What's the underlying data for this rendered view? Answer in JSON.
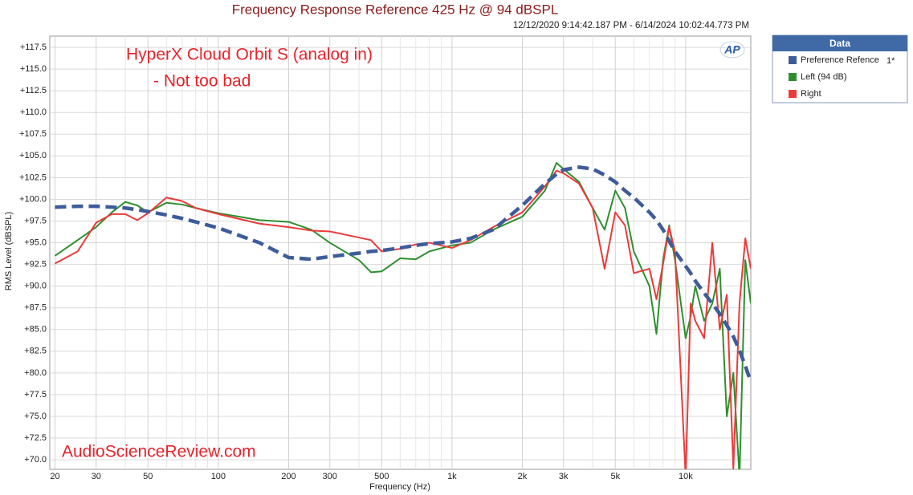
{
  "chart_data": {
    "type": "line",
    "title": "Frequency Response Reference 425 Hz @ 94 dBSPL",
    "subtitle": "12/12/2020 9:14:42.187 PM - 6/14/2024 10:02:44.773 PM",
    "xlabel": "Frequency (Hz)",
    "ylabel": "RMS Level (dBSPL)",
    "annotations": [
      "HyperX Cloud Orbit S (analog in)",
      "- Not too bad",
      "AudioScienceReview.com"
    ],
    "logo": "AP",
    "legend_title": "Data",
    "xscale": "log",
    "grid": true,
    "xlim": [
      19,
      19000
    ],
    "ylim": [
      68.9,
      118.8
    ],
    "xticks": [
      20,
      30,
      50,
      100,
      200,
      300,
      500,
      {
        "value": 1000,
        "label": "1k"
      },
      {
        "value": 2000,
        "label": "2k"
      },
      {
        "value": 3000,
        "label": "3k"
      },
      {
        "value": 5000,
        "label": "5k"
      },
      {
        "value": 10000,
        "label": "10k"
      }
    ],
    "xminorticks": [
      40,
      60,
      70,
      80,
      90,
      400,
      600,
      700,
      800,
      900,
      4000,
      6000,
      7000,
      8000,
      9000
    ],
    "yticks": [
      {
        "value": 70,
        "label": "+70.0"
      },
      {
        "value": 72.5,
        "label": "+72.5"
      },
      {
        "value": 75,
        "label": "+75.0"
      },
      {
        "value": 77.5,
        "label": "+77.5"
      },
      {
        "value": 80,
        "label": "+80.0"
      },
      {
        "value": 82.5,
        "label": "+82.5"
      },
      {
        "value": 85,
        "label": "+85.0"
      },
      {
        "value": 87.5,
        "label": "+87.5"
      },
      {
        "value": 90,
        "label": "+90.0"
      },
      {
        "value": 92.5,
        "label": "+92.5"
      },
      {
        "value": 95,
        "label": "+95.0"
      },
      {
        "value": 97.5,
        "label": "+97.5"
      },
      {
        "value": 100,
        "label": "+100.0"
      },
      {
        "value": 102.5,
        "label": "+102.5"
      },
      {
        "value": 105,
        "label": "+105.0"
      },
      {
        "value": 107.5,
        "label": "+107.5"
      },
      {
        "value": 110,
        "label": "+110.0"
      },
      {
        "value": 112.5,
        "label": "+112.5"
      },
      {
        "value": 115,
        "label": "+115.0"
      },
      {
        "value": 117.5,
        "label": "+117.5"
      }
    ],
    "x": [
      20,
      25,
      30,
      35,
      40,
      45,
      50,
      60,
      70,
      80,
      100,
      150,
      200,
      250,
      300,
      400,
      450,
      500,
      600,
      700,
      800,
      1000,
      1200,
      1500,
      2000,
      2500,
      2800,
      3000,
      3500,
      4000,
      4500,
      5000,
      5500,
      6000,
      7000,
      7500,
      8000,
      8500,
      9000,
      10000,
      10500,
      11000,
      12000,
      13000,
      14000,
      15000,
      16000,
      17000,
      18000,
      19000
    ],
    "series": [
      {
        "name": "Preference Refence",
        "legend_note": "1*",
        "color": "#3e5c9a",
        "dashed": true,
        "values": [
          99.1,
          99.2,
          99.2,
          99.1,
          99,
          98.8,
          98.6,
          98.2,
          97.8,
          97.4,
          96.7,
          95,
          93.3,
          93.1,
          93.4,
          93.8,
          94,
          94.1,
          94.4,
          94.7,
          94.9,
          95.1,
          95.5,
          96.5,
          99.3,
          101.8,
          102.9,
          103.4,
          103.7,
          103.5,
          102.8,
          102,
          101,
          100.2,
          98.5,
          97.6,
          96.5,
          95.2,
          94,
          92.3,
          91.5,
          90.6,
          89.2,
          88,
          86.8,
          85.5,
          84.2,
          82.6,
          80.8,
          79
        ]
      },
      {
        "name": "Left (94 dB)",
        "color": "#2f8f2f",
        "dashed": false,
        "values": [
          93.5,
          95.3,
          96.8,
          98.5,
          99.7,
          99.3,
          98.5,
          99.6,
          99.4,
          99,
          98.4,
          97.6,
          97.4,
          96.5,
          95,
          93,
          91.6,
          91.7,
          93.2,
          93.1,
          94,
          94.7,
          95,
          96.5,
          98,
          101,
          104.2,
          103.5,
          102,
          99,
          96.5,
          101,
          99,
          94,
          90,
          84.5,
          93,
          97,
          93,
          84,
          86.5,
          90,
          86,
          88,
          92,
          75,
          80,
          68,
          93,
          88
        ]
      },
      {
        "name": "Right",
        "color": "#ec3a3a",
        "dashed": false,
        "values": [
          92.6,
          94,
          97.3,
          98.3,
          98.3,
          97.6,
          98.4,
          100.2,
          99.8,
          99,
          98.3,
          97.2,
          96.8,
          96.4,
          96.3,
          95.6,
          95.3,
          94,
          94.3,
          94.8,
          95,
          94.4,
          95.3,
          96.8,
          98.5,
          101.5,
          103.3,
          103,
          101.8,
          99,
          92,
          98.5,
          97,
          91.5,
          92,
          88.5,
          92.5,
          96.8,
          94,
          68,
          88,
          86,
          84,
          95,
          85,
          89,
          69,
          88,
          95.5,
          92
        ]
      }
    ]
  }
}
